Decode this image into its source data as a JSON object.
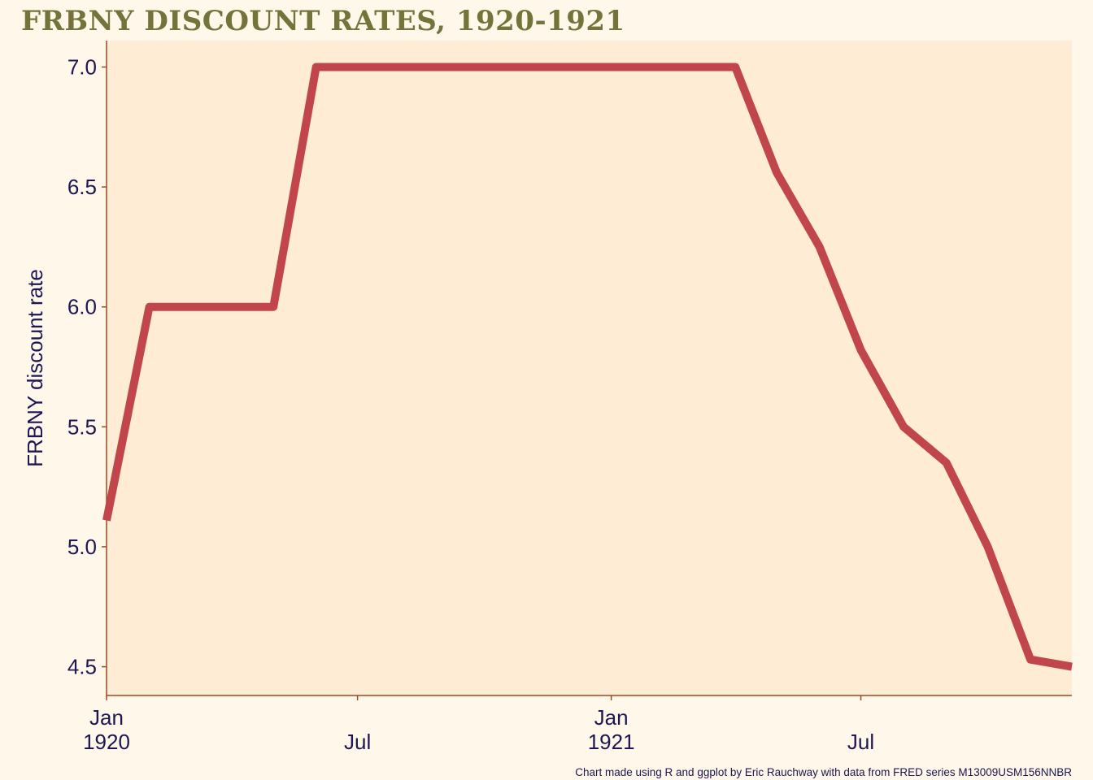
{
  "title": "FRBNY discount rates, 1920-1921",
  "caption": "Chart made using R and ggplot by Eric Rauchway with data from FRED series M13009USM156NNBR",
  "colors": {
    "background": "#fff8ea",
    "panel": "#feecd4",
    "line": "#c1464b",
    "axis": "#9a4a22",
    "title": "#75733a",
    "text": "#1d1650"
  },
  "chart_data": {
    "type": "line",
    "ylabel": "FRBNY discount rate",
    "xlabel": "",
    "x_range": [
      "1920-01-01",
      "1921-12-01"
    ],
    "ylim": [
      4.38,
      7.11
    ],
    "grid": false,
    "y_ticks": [
      4.5,
      5.0,
      5.5,
      6.0,
      6.5,
      7.0
    ],
    "y_tick_labels": [
      "4.5",
      "5.0",
      "5.5",
      "6.0",
      "6.5",
      "7.0"
    ],
    "x_ticks": [
      {
        "date": "1920-01-01",
        "line1": "Jan",
        "line2": "1920"
      },
      {
        "date": "1920-07-01",
        "line1": "",
        "line2": "Jul"
      },
      {
        "date": "1921-01-01",
        "line1": "Jan",
        "line2": "1921"
      },
      {
        "date": "1921-07-01",
        "line1": "",
        "line2": "Jul"
      }
    ],
    "series": [
      {
        "x": [
          "1920-01-01",
          "1920-02-01",
          "1920-03-01",
          "1920-04-01",
          "1920-05-01",
          "1920-06-01",
          "1920-07-01",
          "1920-08-01",
          "1920-09-01",
          "1920-10-01",
          "1920-11-01",
          "1920-12-01",
          "1921-01-01",
          "1921-02-01",
          "1921-03-01",
          "1921-04-01",
          "1921-05-01",
          "1921-06-01",
          "1921-07-01",
          "1921-08-01",
          "1921-09-01",
          "1921-10-01",
          "1921-11-01",
          "1921-12-01"
        ],
        "y": [
          5.11,
          6.0,
          6.0,
          6.0,
          6.0,
          7.0,
          7.0,
          7.0,
          7.0,
          7.0,
          7.0,
          7.0,
          7.0,
          7.0,
          7.0,
          7.0,
          6.56,
          6.25,
          5.82,
          5.5,
          5.35,
          5.0,
          4.53,
          4.5
        ]
      }
    ]
  }
}
